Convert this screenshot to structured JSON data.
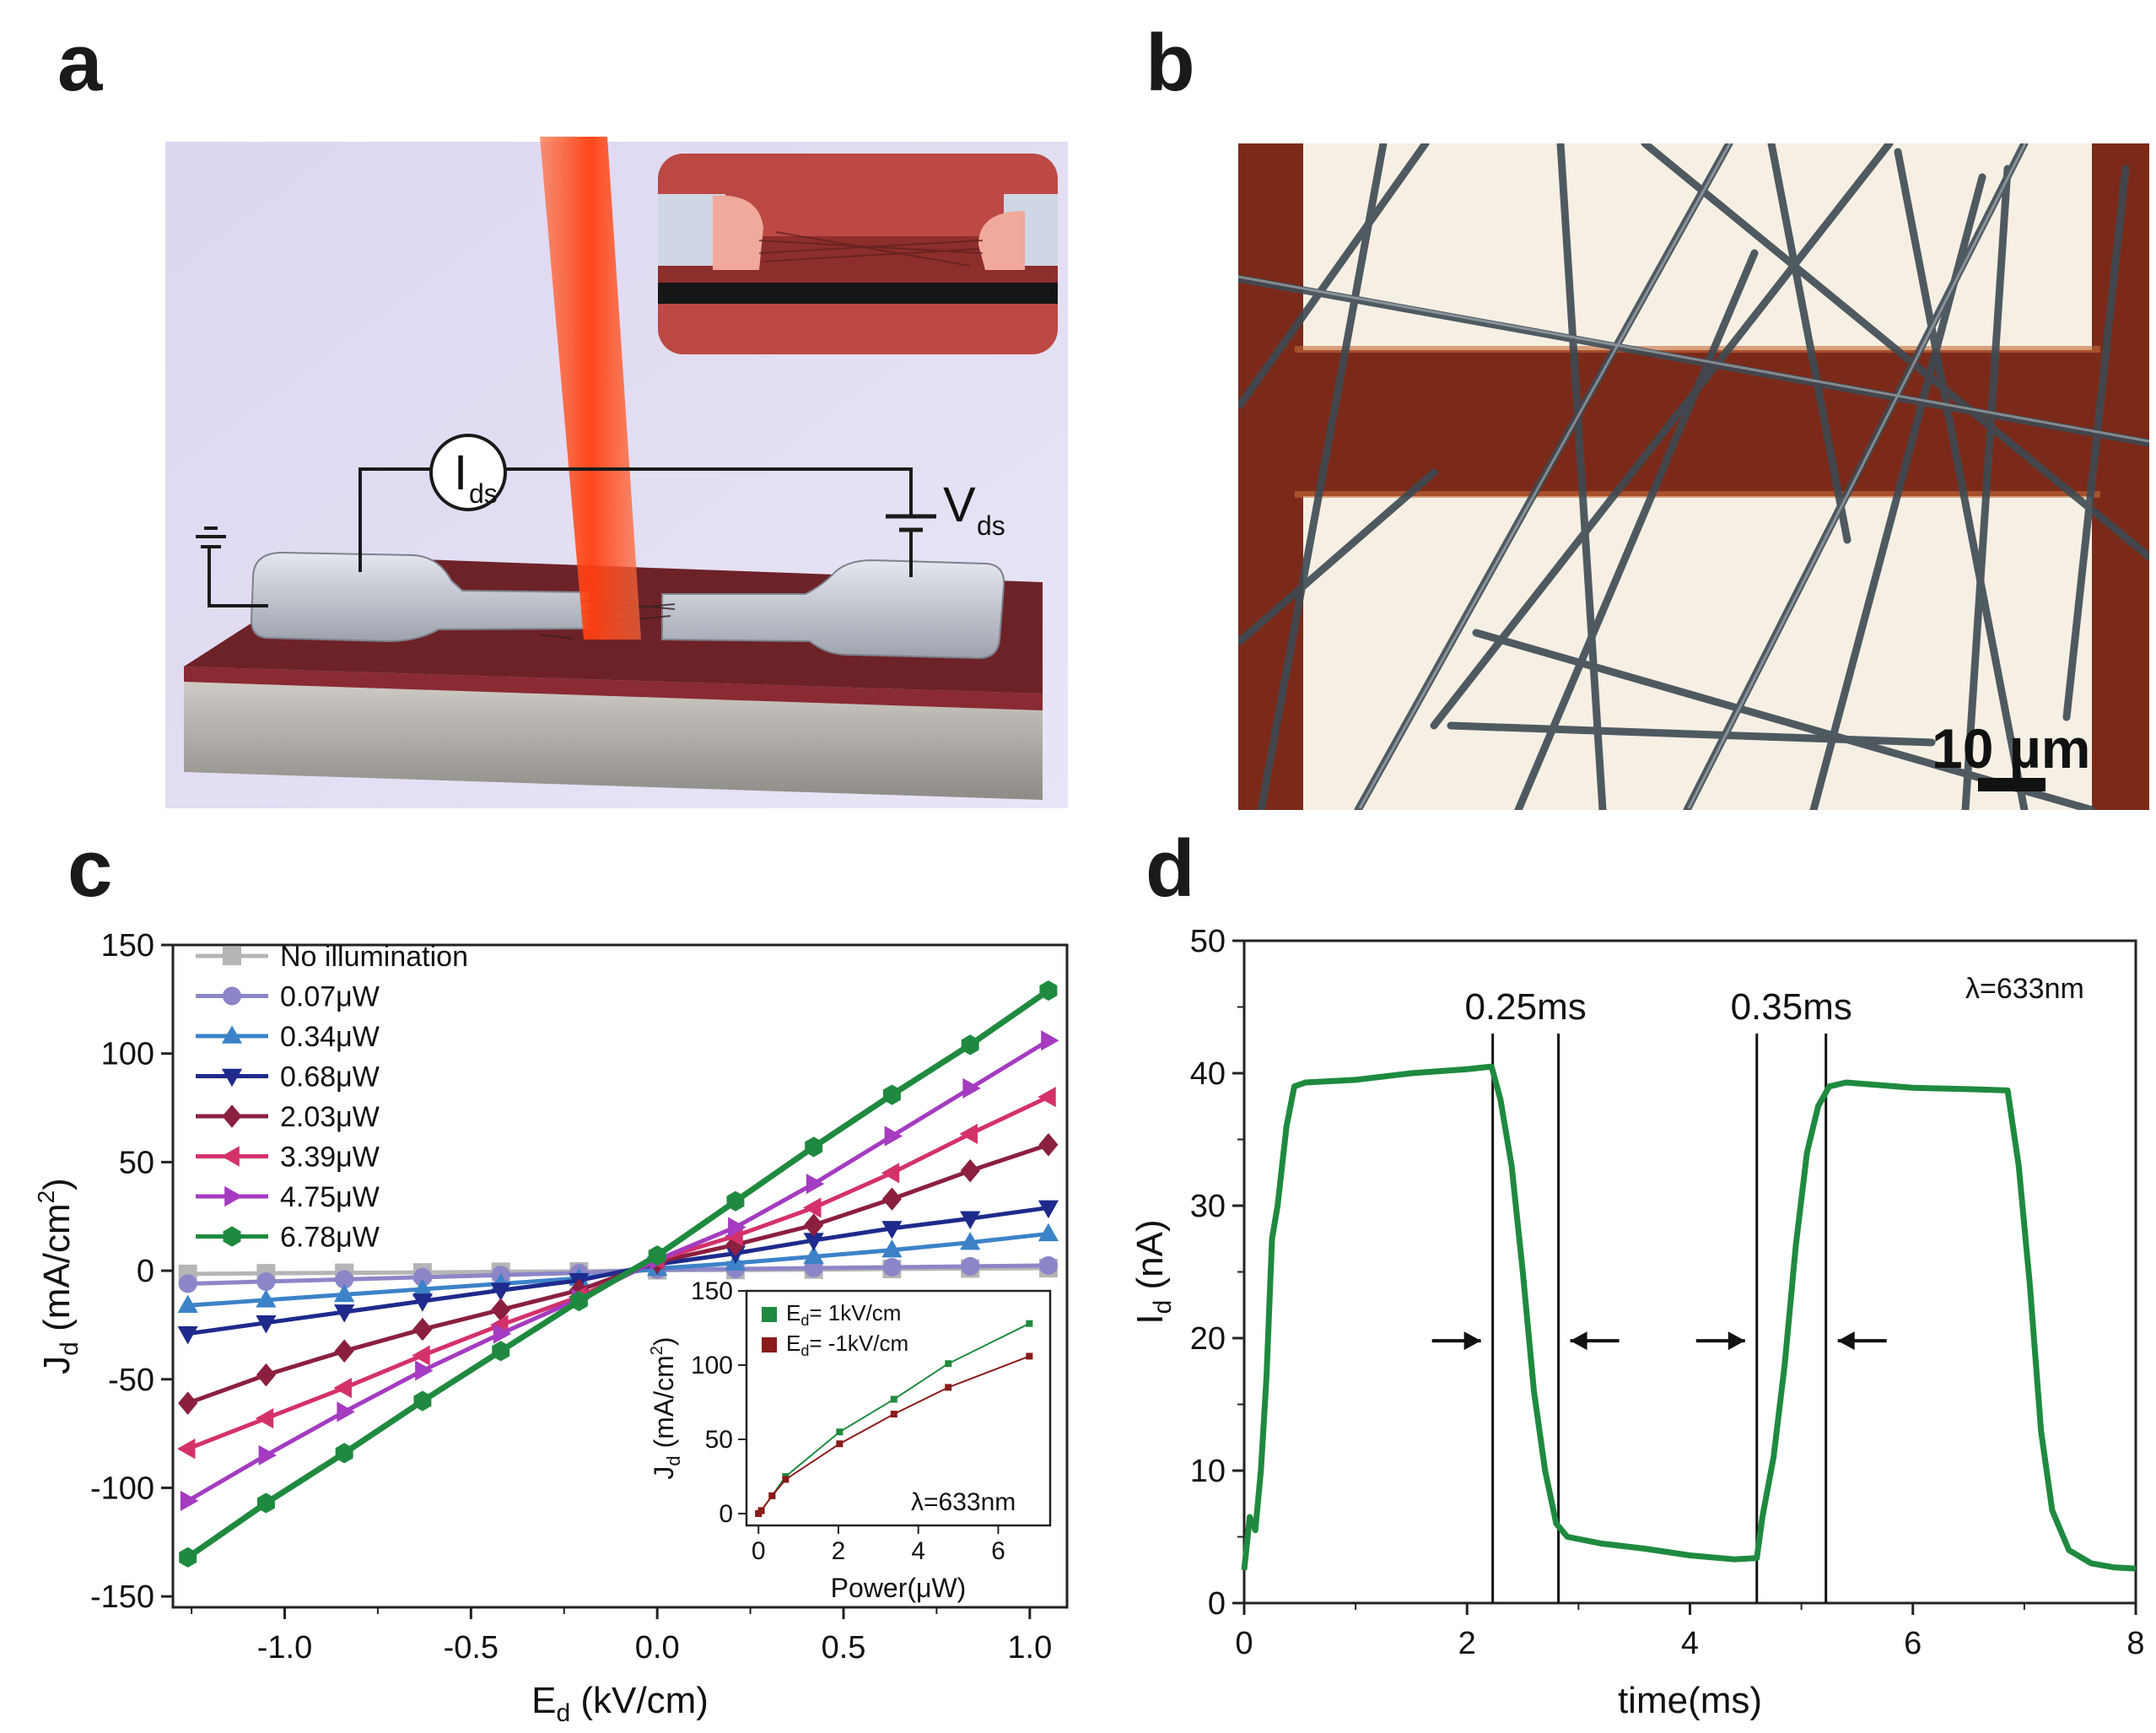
{
  "panels": {
    "a": "a",
    "b": "b",
    "c": "c",
    "d": "d"
  },
  "panel_a": {
    "current_label": "I",
    "current_sub": "ds",
    "voltage_label": "V",
    "voltage_sub": "ds",
    "colors": {
      "background": "#e2def3",
      "laser": "#ff4a1c",
      "substrate_top": "#6d2228",
      "substrate_side": "#b9b6b0",
      "electrode": "#c9cdd6"
    }
  },
  "panel_b": {
    "scale_bar_label": "10 µm",
    "colors": {
      "electrode": "#f6efe4",
      "gap": "#7b2a1a",
      "wire": "#3d4a52"
    }
  },
  "chart_data": [
    {
      "id": "c",
      "type": "line",
      "xlabel": "E",
      "xlabel_sub": "d",
      "xlabel_unit": " (kV/cm)",
      "ylabel": "J",
      "ylabel_sub": "d",
      "ylabel_unit": " (mA/cm",
      "ylabel_sup": "2",
      "ylabel_close": ")",
      "xlim": [
        -1.3,
        1.1
      ],
      "ylim": [
        -155,
        150
      ],
      "xticks": [
        -1.0,
        -0.5,
        0.0,
        0.5,
        1.0
      ],
      "xtick_labels": [
        "-1.0",
        "-0.5",
        "0.0",
        "0.5",
        "1.0"
      ],
      "yticks": [
        -150,
        -100,
        -50,
        0,
        50,
        100,
        150
      ],
      "ytick_labels": [
        "-150",
        "-100",
        "-50",
        "0",
        "50",
        "100",
        "150"
      ],
      "x": [
        -1.26,
        -1.05,
        -0.84,
        -0.63,
        -0.42,
        -0.21,
        0.0,
        0.21,
        0.42,
        0.63,
        0.84,
        1.05
      ],
      "series": [
        {
          "name": "No illumination",
          "color": "#b5b5b5",
          "marker": "square",
          "values": [
            -1.5,
            -1.2,
            -1.0,
            -0.8,
            -0.5,
            -0.3,
            0.2,
            0.3,
            0.5,
            0.8,
            1.0,
            1.2
          ]
        },
        {
          "name": "0.07μW",
          "color": "#8c86c8",
          "marker": "circle",
          "values": [
            -6,
            -5,
            -4,
            -3,
            -2,
            -1,
            0.5,
            0.8,
            1.2,
            1.6,
            2.0,
            2.4
          ]
        },
        {
          "name": "0.34μW",
          "color": "#3c82c8",
          "marker": "triangle-up",
          "values": [
            -16,
            -13.5,
            -11,
            -8.5,
            -6,
            -3.5,
            1,
            3.5,
            6.5,
            9.5,
            13,
            17
          ]
        },
        {
          "name": "0.68μW",
          "color": "#1e2a8c",
          "marker": "triangle-down",
          "values": [
            -29,
            -24,
            -19,
            -14,
            -9,
            -4.5,
            3,
            8,
            14,
            19.5,
            24,
            29
          ]
        },
        {
          "name": "2.03μW",
          "color": "#8b1f3f",
          "marker": "diamond",
          "values": [
            -61,
            -48,
            -37,
            -27,
            -18,
            -9,
            4,
            12,
            21,
            33,
            46,
            58
          ]
        },
        {
          "name": "3.39μW",
          "color": "#d4316b",
          "marker": "triangle-left",
          "values": [
            -82,
            -68,
            -54,
            -39,
            -25,
            -12,
            5,
            16,
            29,
            45,
            63,
            80
          ]
        },
        {
          "name": "4.75μW",
          "color": "#a43bc0",
          "marker": "triangle-right",
          "values": [
            -106,
            -85,
            -65,
            -46,
            -29,
            -13,
            5,
            20,
            40,
            62,
            84,
            106
          ]
        },
        {
          "name": "6.78μW",
          "color": "#1f8a3f",
          "marker": "hexagon",
          "values": [
            -132,
            -107,
            -84,
            -60,
            -37,
            -14,
            7,
            32,
            57,
            81,
            104,
            129
          ]
        }
      ],
      "inset": {
        "type": "line",
        "xlabel": "Power(μW)",
        "ylabel": "J",
        "ylabel_sub": "d",
        "ylabel_unit": " (mA/cm",
        "ylabel_sup": "2",
        "ylabel_close": ")",
        "xlim": [
          -0.3,
          7.3
        ],
        "ylim": [
          -8,
          150
        ],
        "xticks": [
          0,
          2,
          4,
          6
        ],
        "xtick_labels": [
          "0",
          "2",
          "4",
          "6"
        ],
        "yticks": [
          0,
          50,
          100,
          150
        ],
        "ytick_labels": [
          "0",
          "50",
          "100",
          "150"
        ],
        "annotation": "λ=633nm",
        "x": [
          0,
          0.07,
          0.34,
          0.68,
          2.03,
          3.39,
          4.75,
          6.78
        ],
        "series": [
          {
            "name": "E",
            "name_sub": "d",
            "name_rest": "= 1kV/cm",
            "color": "#1f8a3f",
            "values": [
              0,
              2,
              12,
              25,
              55,
              77,
              101,
              128
            ]
          },
          {
            "name": "E",
            "name_sub": "d",
            "name_rest": "= -1kV/cm",
            "color": "#8b1a1a",
            "values": [
              0,
              2,
              12,
              23,
              47,
              67,
              85,
              106
            ]
          }
        ]
      }
    },
    {
      "id": "d",
      "type": "line",
      "xlabel": "time(ms)",
      "ylabel": "I",
      "ylabel_sub": "d",
      "ylabel_unit": " (nA)",
      "xlim": [
        0,
        8
      ],
      "ylim": [
        0,
        50
      ],
      "xticks": [
        0,
        2,
        4,
        6,
        8
      ],
      "xtick_labels": [
        "0",
        "2",
        "4",
        "6",
        "8"
      ],
      "yticks": [
        0,
        10,
        20,
        30,
        40,
        50
      ],
      "ytick_labels": [
        "0",
        "10",
        "20",
        "30",
        "40",
        "50"
      ],
      "annotation": "λ=633nm",
      "rise_label": "0.25ms",
      "fall_label": "0.35ms",
      "marker_lines_x": [
        2.23,
        2.82,
        4.6,
        5.22
      ],
      "color": "#1f8a3f",
      "time": [
        0.0,
        0.05,
        0.1,
        0.15,
        0.2,
        0.25,
        0.3,
        0.38,
        0.45,
        0.55,
        1.0,
        1.5,
        2.0,
        2.22,
        2.3,
        2.4,
        2.5,
        2.6,
        2.7,
        2.8,
        2.9,
        3.2,
        3.6,
        4.0,
        4.4,
        4.6,
        4.65,
        4.75,
        4.85,
        4.95,
        5.05,
        5.15,
        5.25,
        5.4,
        6.0,
        6.5,
        6.85,
        6.95,
        7.05,
        7.15,
        7.25,
        7.4,
        7.6,
        7.8,
        8.0
      ],
      "current": [
        2.5,
        6.5,
        5.5,
        10.0,
        17.0,
        27.5,
        30.0,
        36.0,
        39.0,
        39.3,
        39.5,
        40.0,
        40.3,
        40.5,
        38.0,
        33.0,
        25.0,
        16.0,
        10.0,
        6.0,
        5.0,
        4.5,
        4.1,
        3.6,
        3.3,
        3.4,
        6.5,
        11.0,
        18.0,
        27.0,
        34.0,
        37.5,
        39.0,
        39.3,
        38.9,
        38.8,
        38.7,
        33.0,
        24.0,
        13.0,
        7.0,
        4.0,
        3.0,
        2.7,
        2.6
      ]
    }
  ]
}
